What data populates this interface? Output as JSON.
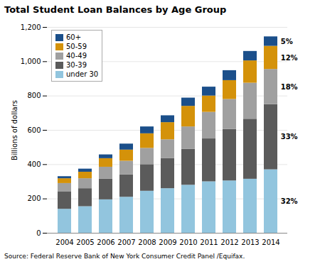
{
  "chart_data": {
    "type": "bar",
    "stacked": true,
    "title": "Total Student Loan Balances by Age Group",
    "ylabel": "Billions of dollars",
    "source": "Source: Federal Reserve Bank of New York Consumer Credit Panel /Equifax.",
    "categories": [
      "2004",
      "2005",
      "2006",
      "2007",
      "2008",
      "2009",
      "2010",
      "2011",
      "2012",
      "2013",
      "2014"
    ],
    "series": [
      {
        "name": "under 30",
        "color": "#92C5DE",
        "values": [
          140,
          155,
          195,
          210,
          245,
          260,
          280,
          300,
          305,
          315,
          370
        ]
      },
      {
        "name": "30-39",
        "color": "#5B5B5B",
        "values": [
          100,
          105,
          120,
          130,
          155,
          175,
          210,
          250,
          300,
          350,
          380
        ]
      },
      {
        "name": "40-49",
        "color": "#A0A0A0",
        "values": [
          50,
          58,
          70,
          80,
          95,
          110,
          130,
          155,
          175,
          210,
          205
        ]
      },
      {
        "name": "50-59",
        "color": "#D4920A",
        "values": [
          28,
          38,
          50,
          65,
          85,
          100,
          120,
          95,
          110,
          130,
          135
        ]
      },
      {
        "name": "60+",
        "color": "#1B4F8A",
        "values": [
          12,
          18,
          22,
          35,
          40,
          40,
          48,
          52,
          58,
          55,
          55
        ]
      }
    ],
    "annotations": [
      {
        "text": "32%",
        "series": "under 30",
        "category": "2014"
      },
      {
        "text": "33%",
        "series": "30-39",
        "category": "2014"
      },
      {
        "text": "18%",
        "series": "40-49",
        "category": "2014"
      },
      {
        "text": "12%",
        "series": "50-59",
        "category": "2014"
      },
      {
        "text": "5%",
        "series": "60+",
        "category": "2014"
      }
    ],
    "ylim": [
      0,
      1200
    ],
    "yticks": [
      0,
      200,
      400,
      600,
      800,
      {
        "value": 1000,
        "label": "1,000"
      },
      {
        "value": 1200,
        "label": "1,200"
      }
    ],
    "grid": true,
    "legend": "upper left"
  }
}
